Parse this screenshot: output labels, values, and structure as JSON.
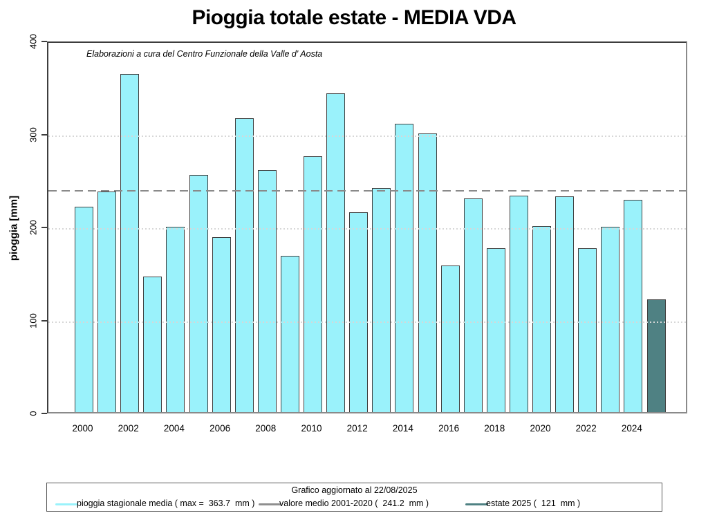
{
  "title": "Pioggia totale estate - MEDIA VDA",
  "subtitle": "Elaborazioni a cura del Centro Funzionale della Valle d' Aosta",
  "y_axis": {
    "label": "pioggia [mm]",
    "ticks": [
      0,
      100,
      200,
      300,
      400
    ],
    "gridlines": [
      100,
      200,
      300
    ]
  },
  "x_axis": {
    "tick_years": [
      2000,
      2002,
      2004,
      2006,
      2008,
      2010,
      2012,
      2014,
      2016,
      2018,
      2020,
      2022,
      2024
    ]
  },
  "chart_data": {
    "type": "bar",
    "title": "Pioggia totale estate - MEDIA VDA",
    "ylabel": "pioggia [mm]",
    "ylim": [
      0,
      400
    ],
    "grid": "dotted horizontal at 100/200/300, legend bottom, frame box on",
    "x": [
      2000,
      2001,
      2002,
      2003,
      2004,
      2005,
      2006,
      2007,
      2008,
      2009,
      2010,
      2011,
      2012,
      2013,
      2014,
      2015,
      2016,
      2017,
      2018,
      2019,
      2020,
      2021,
      2022,
      2023,
      2024,
      2025
    ],
    "values": [
      221,
      237,
      363.7,
      146,
      199,
      255,
      188,
      316,
      260,
      168,
      275,
      343,
      215,
      241,
      310,
      300,
      158,
      230,
      176,
      233,
      200,
      232,
      176,
      199,
      228,
      121
    ],
    "max_value": 363.7,
    "highlight_year": 2025,
    "highlight_value": 121,
    "reference_line": {
      "value": 241.2,
      "label": "valore medio 2001-2020"
    },
    "bar_color": "#9af2fb",
    "bar_border": "#3f3f3f",
    "highlight_color": "#4f8183",
    "reference_color": "#8a8a8a"
  },
  "legend": {
    "title": "Grafico aggiornato al 22/08/2025",
    "items": [
      {
        "label": "pioggia stagionale media ( max =  363.7  mm )",
        "color": "#9af2fb"
      },
      {
        "label": "valore medio 2001-2020 (  241.2  mm )",
        "color": "#8f8f8f"
      },
      {
        "label": "estate 2025 (  121  mm )",
        "color": "#4f8183"
      }
    ]
  }
}
